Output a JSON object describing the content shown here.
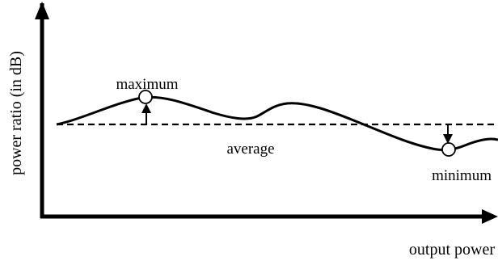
{
  "diagram": {
    "y_axis_label": "power ratio (in dB)",
    "x_axis_label": "output power",
    "labels": {
      "maximum": "maximum",
      "average": "average",
      "minimum": "minimum"
    },
    "colors": {
      "ink": "#000000",
      "background": "#ffffff"
    },
    "curve_style": "solid",
    "average_line_style": "dashed",
    "extremum_marker": "hollow-circle"
  }
}
